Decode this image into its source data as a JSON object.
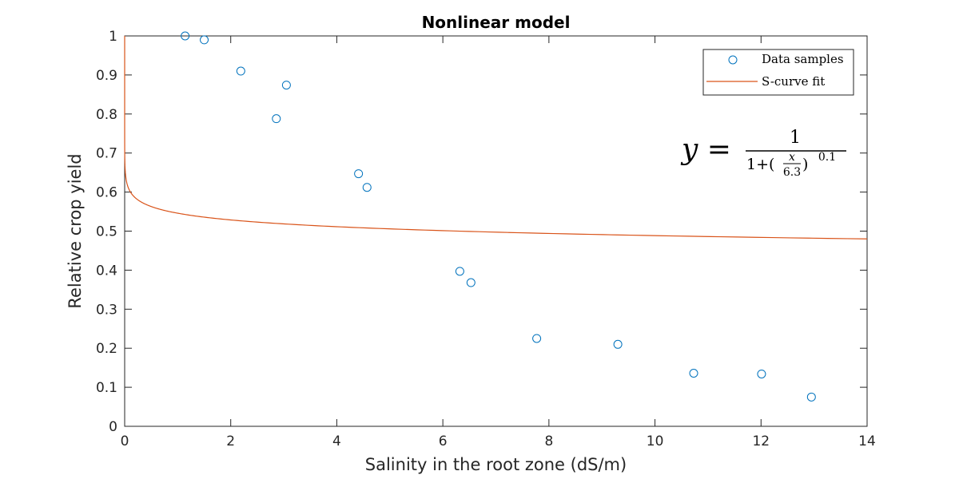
{
  "chart_data": {
    "type": "scatter",
    "title": "Nonlinear model",
    "xlabel": "Salinity in the root zone (dS/m)",
    "ylabel": "Relative crop yield",
    "xlim": [
      0,
      14
    ],
    "ylim": [
      0,
      1
    ],
    "x_ticks": [
      0,
      2,
      4,
      6,
      8,
      10,
      12,
      14
    ],
    "y_ticks": [
      0,
      0.1,
      0.2,
      0.3,
      0.4,
      0.5,
      0.6,
      0.7,
      0.8,
      0.9,
      1
    ],
    "grid": false,
    "legend_position": "top-right",
    "series": [
      {
        "name": "Data samples",
        "kind": "scatter",
        "marker": "circle-open",
        "color": "#0072BD",
        "x": [
          1.14,
          1.5,
          2.19,
          2.86,
          3.05,
          4.41,
          4.57,
          6.32,
          6.53,
          7.77,
          9.3,
          10.73,
          12.01,
          12.95
        ],
        "y": [
          1.0,
          0.99,
          0.91,
          0.788,
          0.874,
          0.647,
          0.612,
          0.397,
          0.368,
          0.225,
          0.21,
          0.136,
          0.134,
          0.075
        ]
      },
      {
        "name": "S-curve fit",
        "kind": "line",
        "color": "#D95319",
        "model": {
          "c": 6.3,
          "n": 0.1
        }
      }
    ],
    "annotation": {
      "lhs": "y =",
      "numerator": "1",
      "denominator_prefix": "1+(",
      "inner_numerator": "x",
      "inner_denominator": "6.3",
      "denominator_suffix": ")",
      "exponent": "0.1"
    }
  }
}
